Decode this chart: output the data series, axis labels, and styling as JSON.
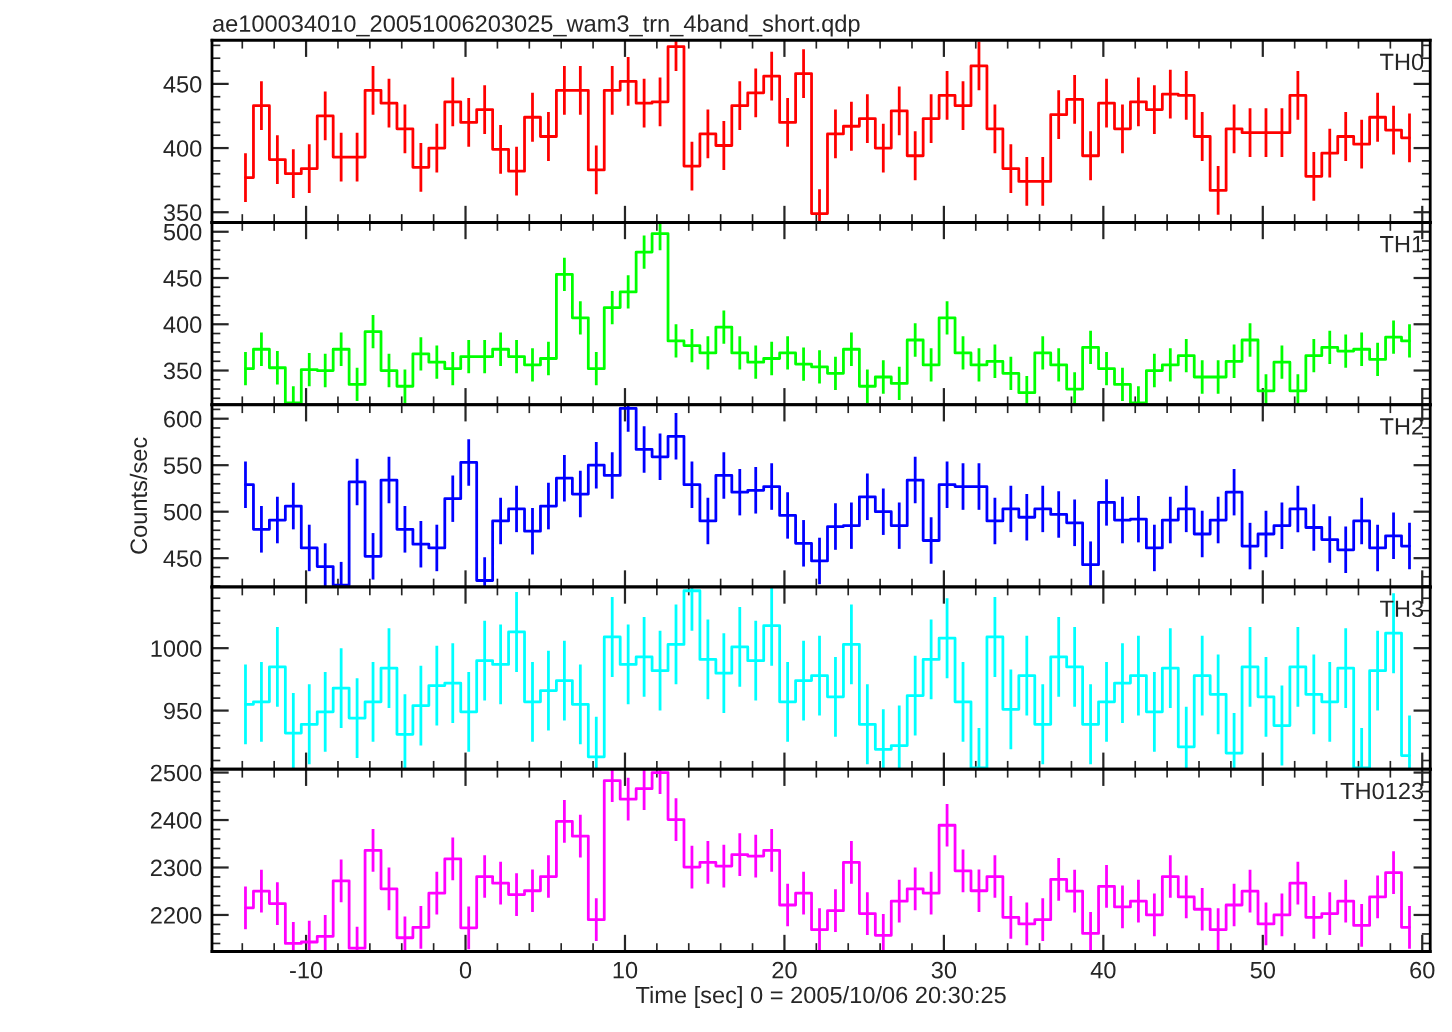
{
  "chart_data": [
    {
      "type": "step",
      "title": "TH0",
      "annotations": [
        "ae100034010_20051006203025_wam3_trn_4band_short.qdp"
      ],
      "tick_labels": "y",
      "xlim": [
        -15.9,
        60.5
      ],
      "xticks": [
        -10,
        0,
        10,
        20,
        30,
        40,
        50,
        60
      ],
      "ylim": [
        342,
        484
      ],
      "yticks": [
        350,
        400,
        450
      ],
      "x": [
        -13.8,
        -12.8,
        -11.8,
        -10.8,
        -9.8,
        -8.8,
        -7.8,
        -6.8,
        -5.8,
        -4.8,
        -3.8,
        -2.8,
        -1.8,
        -0.8,
        0.2,
        1.2,
        2.2,
        3.2,
        4.2,
        5.2,
        6.2,
        7.2,
        8.2,
        9.2,
        10.2,
        11.2,
        12.2,
        13.2,
        14.2,
        15.2,
        16.2,
        17.2,
        18.2,
        19.2,
        20.2,
        21.2,
        22.2,
        23.2,
        24.2,
        25.2,
        26.2,
        27.2,
        28.2,
        29.2,
        30.2,
        31.2,
        32.2,
        33.2,
        34.2,
        35.2,
        36.2,
        37.2,
        38.2,
        39.2,
        40.2,
        41.2,
        42.2,
        43.2,
        44.2,
        45.2,
        46.2,
        47.2,
        48.2,
        49.2,
        50.2,
        51.2,
        52.2,
        53.2,
        54.2,
        55.2,
        56.2,
        57.2,
        58.2,
        59.2
      ],
      "series": [
        {
          "color": "#ff0000",
          "values": [
            377,
            433,
            391,
            380,
            384,
            425,
            393,
            393,
            445,
            435,
            415,
            385,
            400,
            436,
            420,
            430,
            399,
            382,
            424,
            409,
            445,
            445,
            383,
            445,
            452,
            435,
            436,
            479,
            386,
            411,
            402,
            433,
            443,
            456,
            420,
            458,
            349,
            411,
            417,
            423,
            400,
            429,
            394,
            423,
            441,
            433,
            464,
            415,
            384,
            374,
            374,
            426,
            438,
            394,
            435,
            415,
            436,
            430,
            442,
            441,
            409,
            367,
            415,
            412,
            412,
            412,
            441,
            378,
            396,
            409,
            403,
            424,
            414,
            408
          ],
          "errors": [
            19,
            19,
            19,
            19,
            19,
            19,
            19,
            19,
            19,
            19,
            19,
            19,
            19,
            19,
            19,
            19,
            19,
            19,
            19,
            19,
            19,
            19,
            19,
            19,
            19,
            19,
            19,
            19,
            19,
            19,
            19,
            19,
            19,
            19,
            19,
            19,
            19,
            19,
            19,
            19,
            19,
            19,
            19,
            19,
            19,
            19,
            19,
            19,
            19,
            19,
            19,
            19,
            19,
            19,
            19,
            19,
            19,
            19,
            19,
            19,
            19,
            19,
            19,
            19,
            19,
            19,
            19,
            19,
            19,
            19,
            19,
            19,
            19,
            19
          ]
        }
      ]
    },
    {
      "type": "step",
      "title": "TH1",
      "tick_labels": "y",
      "xlim": [
        -15.9,
        60.5
      ],
      "xticks": [
        -10,
        0,
        10,
        20,
        30,
        40,
        50,
        60
      ],
      "ylim": [
        313,
        510
      ],
      "yticks": [
        350,
        400,
        450,
        500
      ],
      "x": [
        -13.8,
        -12.8,
        -11.8,
        -10.8,
        -9.8,
        -8.8,
        -7.8,
        -6.8,
        -5.8,
        -4.8,
        -3.8,
        -2.8,
        -1.8,
        -0.8,
        0.2,
        1.2,
        2.2,
        3.2,
        4.2,
        5.2,
        6.2,
        7.2,
        8.2,
        9.2,
        10.2,
        11.2,
        12.2,
        13.2,
        14.2,
        15.2,
        16.2,
        17.2,
        18.2,
        19.2,
        20.2,
        21.2,
        22.2,
        23.2,
        24.2,
        25.2,
        26.2,
        27.2,
        28.2,
        29.2,
        30.2,
        31.2,
        32.2,
        33.2,
        34.2,
        35.2,
        36.2,
        37.2,
        38.2,
        39.2,
        40.2,
        41.2,
        42.2,
        43.2,
        44.2,
        45.2,
        46.2,
        47.2,
        48.2,
        49.2,
        50.2,
        51.2,
        52.2,
        53.2,
        54.2,
        55.2,
        56.2,
        57.2,
        58.2,
        59.2
      ],
      "series": [
        {
          "color": "#00ff00",
          "values": [
            352,
            373,
            353,
            315,
            351,
            350,
            373,
            335,
            392,
            350,
            333,
            368,
            359,
            352,
            365,
            365,
            373,
            365,
            356,
            363,
            454,
            407,
            352,
            418,
            435,
            478,
            498,
            382,
            377,
            369,
            397,
            369,
            359,
            363,
            369,
            357,
            354,
            347,
            373,
            333,
            343,
            336,
            383,
            356,
            407,
            369,
            356,
            360,
            347,
            326,
            369,
            356,
            330,
            375,
            352,
            335,
            315,
            350,
            356,
            366,
            343,
            343,
            360,
            383,
            328,
            359,
            328,
            366,
            375,
            371,
            373,
            362,
            386,
            382
          ],
          "errors": [
            18,
            18,
            18,
            18,
            18,
            18,
            18,
            18,
            18,
            18,
            18,
            18,
            18,
            18,
            18,
            18,
            18,
            18,
            18,
            18,
            18,
            18,
            18,
            18,
            18,
            18,
            18,
            18,
            18,
            18,
            18,
            18,
            18,
            18,
            18,
            18,
            18,
            18,
            18,
            18,
            18,
            18,
            18,
            18,
            18,
            18,
            18,
            18,
            18,
            18,
            18,
            18,
            18,
            18,
            18,
            18,
            18,
            18,
            18,
            18,
            18,
            18,
            18,
            18,
            18,
            18,
            18,
            18,
            18,
            18,
            18,
            18,
            18,
            18
          ]
        }
      ]
    },
    {
      "type": "step",
      "title": "TH2",
      "ylabel": "Counts/sec",
      "tick_labels": "y",
      "xlim": [
        -15.9,
        60.5
      ],
      "xticks": [
        -10,
        0,
        10,
        20,
        30,
        40,
        50,
        60
      ],
      "ylim": [
        419,
        615
      ],
      "yticks": [
        450,
        500,
        550,
        600
      ],
      "x": [
        -13.8,
        -12.8,
        -11.8,
        -10.8,
        -9.8,
        -8.8,
        -7.8,
        -6.8,
        -5.8,
        -4.8,
        -3.8,
        -2.8,
        -1.8,
        -0.8,
        0.2,
        1.2,
        2.2,
        3.2,
        4.2,
        5.2,
        6.2,
        7.2,
        8.2,
        9.2,
        10.2,
        11.2,
        12.2,
        13.2,
        14.2,
        15.2,
        16.2,
        17.2,
        18.2,
        19.2,
        20.2,
        21.2,
        22.2,
        23.2,
        24.2,
        25.2,
        26.2,
        27.2,
        28.2,
        29.2,
        30.2,
        31.2,
        32.2,
        33.2,
        34.2,
        35.2,
        36.2,
        37.2,
        38.2,
        39.2,
        40.2,
        41.2,
        42.2,
        43.2,
        44.2,
        45.2,
        46.2,
        47.2,
        48.2,
        49.2,
        50.2,
        51.2,
        52.2,
        53.2,
        54.2,
        55.2,
        56.2,
        57.2,
        58.2,
        59.2
      ],
      "series": [
        {
          "color": "#0000ff",
          "values": [
            529,
            481,
            491,
            506,
            461,
            441,
            421,
            532,
            452,
            534,
            481,
            465,
            461,
            514,
            553,
            426,
            490,
            503,
            479,
            506,
            536,
            519,
            550,
            539,
            611,
            567,
            559,
            581,
            529,
            490,
            539,
            521,
            523,
            527,
            496,
            466,
            447,
            484,
            485,
            516,
            500,
            485,
            534,
            469,
            529,
            527,
            527,
            490,
            503,
            494,
            503,
            497,
            488,
            443,
            510,
            491,
            492,
            461,
            491,
            503,
            476,
            491,
            521,
            463,
            476,
            485,
            503,
            483,
            470,
            459,
            490,
            461,
            474,
            463
          ],
          "errors": [
            25,
            25,
            25,
            25,
            25,
            25,
            25,
            25,
            25,
            25,
            25,
            25,
            25,
            25,
            25,
            25,
            25,
            25,
            25,
            25,
            25,
            25,
            25,
            25,
            25,
            25,
            25,
            25,
            25,
            25,
            25,
            25,
            25,
            25,
            25,
            25,
            25,
            25,
            25,
            25,
            25,
            25,
            25,
            25,
            25,
            25,
            25,
            25,
            25,
            25,
            25,
            25,
            25,
            25,
            25,
            25,
            25,
            25,
            25,
            25,
            25,
            25,
            25,
            25,
            25,
            25,
            25,
            25,
            25,
            25,
            25,
            25,
            25,
            25
          ]
        }
      ]
    },
    {
      "type": "step",
      "title": "TH3",
      "tick_labels": "y",
      "xlim": [
        -15.9,
        60.5
      ],
      "xticks": [
        -10,
        0,
        10,
        20,
        30,
        40,
        50,
        60
      ],
      "ylim": [
        903,
        1049
      ],
      "yticks": [
        950,
        1000
      ],
      "x": [
        -13.8,
        -12.8,
        -11.8,
        -10.8,
        -9.8,
        -8.8,
        -7.8,
        -6.8,
        -5.8,
        -4.8,
        -3.8,
        -2.8,
        -1.8,
        -0.8,
        0.2,
        1.2,
        2.2,
        3.2,
        4.2,
        5.2,
        6.2,
        7.2,
        8.2,
        9.2,
        10.2,
        11.2,
        12.2,
        13.2,
        14.2,
        15.2,
        16.2,
        17.2,
        18.2,
        19.2,
        20.2,
        21.2,
        22.2,
        23.2,
        24.2,
        25.2,
        26.2,
        27.2,
        28.2,
        29.2,
        30.2,
        31.2,
        32.2,
        33.2,
        34.2,
        35.2,
        36.2,
        37.2,
        38.2,
        39.2,
        40.2,
        41.2,
        42.2,
        43.2,
        44.2,
        45.2,
        46.2,
        47.2,
        48.2,
        49.2,
        50.2,
        51.2,
        52.2,
        53.2,
        54.2,
        55.2,
        56.2,
        57.2,
        58.2,
        59.2
      ],
      "series": [
        {
          "color": "#00ffff",
          "values": [
            955,
            957,
            985,
            932,
            939,
            949,
            968,
            944,
            957,
            984,
            931,
            954,
            970,
            972,
            949,
            990,
            987,
            1013,
            957,
            966,
            974,
            955,
            913,
            1009,
            987,
            993,
            982,
            1003,
            1046,
            991,
            980,
            1001,
            990,
            1018,
            957,
            974,
            978,
            961,
            1003,
            939,
            919,
            922,
            962,
            991,
            1008,
            957,
            904,
            1009,
            951,
            978,
            939,
            993,
            985,
            939,
            957,
            972,
            978,
            949,
            984,
            921,
            978,
            963,
            916,
            985,
            961,
            938,
            985,
            963,
            957,
            984,
            904,
            982,
            1012,
            914
          ],
          "errors": [
            32,
            32,
            32,
            32,
            32,
            32,
            32,
            32,
            32,
            32,
            32,
            32,
            32,
            32,
            32,
            32,
            32,
            32,
            32,
            32,
            32,
            32,
            32,
            32,
            32,
            32,
            32,
            32,
            32,
            32,
            32,
            32,
            32,
            32,
            32,
            32,
            32,
            32,
            32,
            32,
            32,
            32,
            32,
            32,
            32,
            32,
            32,
            32,
            32,
            32,
            32,
            32,
            32,
            32,
            32,
            32,
            32,
            32,
            32,
            32,
            32,
            32,
            32,
            32,
            32,
            32,
            32,
            32,
            32,
            32,
            32,
            32,
            32,
            32
          ]
        }
      ]
    },
    {
      "type": "step",
      "title": "TH0123",
      "xlabel": "Time [sec] 0 = 2005/10/06 20:30:25",
      "xlim": [
        -15.9,
        60.5
      ],
      "xticks": [
        -10,
        0,
        10,
        20,
        30,
        40,
        50,
        60
      ],
      "ylim": [
        2123,
        2507
      ],
      "yticks": [
        2200,
        2300,
        2400,
        2500
      ],
      "x": [
        -13.8,
        -12.8,
        -11.8,
        -10.8,
        -9.8,
        -8.8,
        -7.8,
        -6.8,
        -5.8,
        -4.8,
        -3.8,
        -2.8,
        -1.8,
        -0.8,
        0.2,
        1.2,
        2.2,
        3.2,
        4.2,
        5.2,
        6.2,
        7.2,
        8.2,
        9.2,
        10.2,
        11.2,
        12.2,
        13.2,
        14.2,
        15.2,
        16.2,
        17.2,
        18.2,
        19.2,
        20.2,
        21.2,
        22.2,
        23.2,
        24.2,
        25.2,
        26.2,
        27.2,
        28.2,
        29.2,
        30.2,
        31.2,
        32.2,
        33.2,
        34.2,
        35.2,
        36.2,
        37.2,
        38.2,
        39.2,
        40.2,
        41.2,
        42.2,
        43.2,
        44.2,
        45.2,
        46.2,
        47.2,
        48.2,
        49.2,
        50.2,
        51.2,
        52.2,
        53.2,
        54.2,
        55.2,
        56.2,
        57.2,
        58.2,
        59.2
      ],
      "series": [
        {
          "color": "#ff00ff",
          "values": [
            2215,
            2250,
            2224,
            2140,
            2143,
            2155,
            2272,
            2130,
            2336,
            2255,
            2152,
            2174,
            2246,
            2318,
            2173,
            2281,
            2267,
            2243,
            2251,
            2281,
            2397,
            2366,
            2190,
            2483,
            2444,
            2466,
            2500,
            2401,
            2301,
            2311,
            2303,
            2327,
            2324,
            2336,
            2221,
            2246,
            2169,
            2209,
            2311,
            2203,
            2157,
            2229,
            2255,
            2246,
            2389,
            2293,
            2251,
            2281,
            2195,
            2181,
            2190,
            2275,
            2250,
            2161,
            2260,
            2217,
            2229,
            2200,
            2281,
            2238,
            2212,
            2169,
            2221,
            2250,
            2181,
            2200,
            2267,
            2195,
            2203,
            2229,
            2178,
            2238,
            2289,
            2174
          ],
          "errors": [
            45,
            45,
            45,
            45,
            45,
            45,
            45,
            45,
            45,
            45,
            45,
            45,
            45,
            45,
            45,
            45,
            45,
            45,
            45,
            45,
            45,
            45,
            45,
            45,
            45,
            45,
            45,
            45,
            45,
            45,
            45,
            45,
            45,
            45,
            45,
            45,
            45,
            45,
            45,
            45,
            45,
            45,
            45,
            45,
            45,
            45,
            45,
            45,
            45,
            45,
            45,
            45,
            45,
            45,
            45,
            45,
            45,
            45,
            45,
            45,
            45,
            45,
            45,
            45,
            45,
            45,
            45,
            45,
            45,
            45,
            45,
            45,
            45,
            45
          ]
        }
      ]
    }
  ]
}
